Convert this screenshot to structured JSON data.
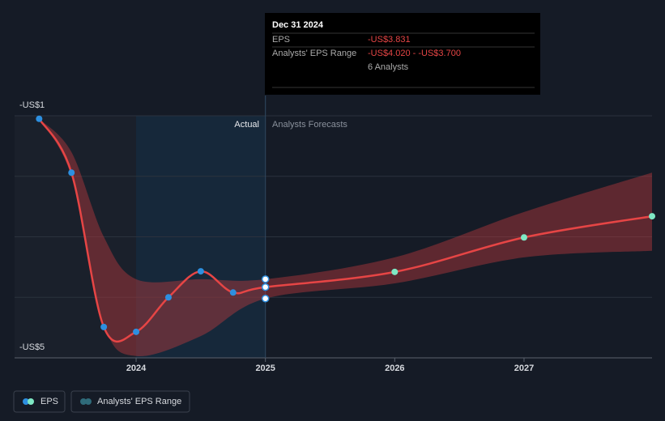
{
  "chart_data": {
    "type": "line",
    "xlim": [
      2023.06,
      2027.99
    ],
    "ylim": [
      -5,
      -1
    ],
    "xticks": [
      2024,
      2025,
      2026,
      2027
    ],
    "yticks": [
      {
        "value": -1,
        "label": "-US$1"
      },
      {
        "value": -5,
        "label": "-US$5"
      }
    ],
    "ygrid": [
      -1,
      -2,
      -3,
      -4,
      -5
    ],
    "divider_x": 2025,
    "actual_label": "Actual",
    "forecast_label": "Analysts Forecasts",
    "series": [
      {
        "name": "EPS",
        "color": "#e64545",
        "actual_marker_color": "#2d8fe0",
        "forecast_marker_color": "#7ee8c4",
        "x": [
          2023.25,
          2023.5,
          2023.75,
          2024.0,
          2024.25,
          2024.5,
          2024.75,
          2025.0,
          2026.0,
          2027.0,
          2027.99
        ],
        "values": [
          -1.05,
          -1.94,
          -4.49,
          -4.57,
          -4.0,
          -3.57,
          -3.92,
          -3.831,
          -3.58,
          -3.01,
          -2.66
        ]
      },
      {
        "name": "Analysts' EPS Range",
        "color": "#b83a3f",
        "legend_color": "#2f6b7a",
        "x": [
          2023.25,
          2023.5,
          2023.75,
          2024.0,
          2024.5,
          2025.0,
          2026.0,
          2027.0,
          2027.99
        ],
        "high": [
          -1.05,
          -1.6,
          -3.0,
          -3.7,
          -3.7,
          -3.7,
          -3.34,
          -2.59,
          -1.94
        ],
        "low": [
          -1.05,
          -2.0,
          -4.44,
          -4.97,
          -4.64,
          -4.02,
          -3.77,
          -3.34,
          -3.23
        ]
      }
    ],
    "tooltip": {
      "date": "Dec 31 2024",
      "eps_label": "EPS",
      "eps_value": "-US$3.831",
      "range_label": "Analysts' EPS Range",
      "range_value": "-US$4.020 - -US$3.700",
      "analysts": "6 Analysts"
    }
  }
}
